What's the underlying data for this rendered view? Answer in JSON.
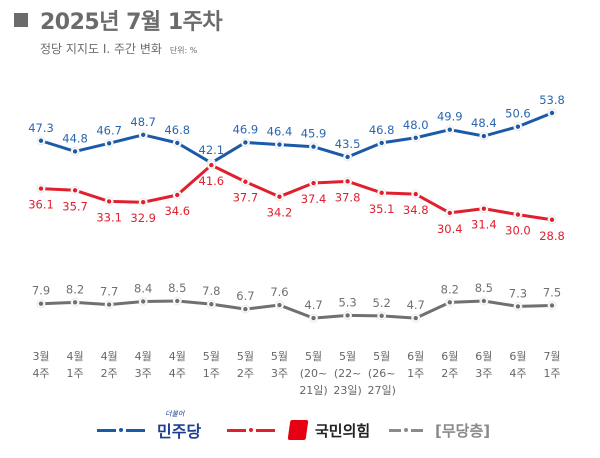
{
  "header": {
    "title": "2025년 7월 1주차",
    "subtitle": "정당 지지도 Ⅰ. 주간 변화",
    "unit": "단위: %"
  },
  "chart_data": {
    "type": "line",
    "title": "2025년 7월 1주차",
    "subtitle": "정당 지지도 Ⅰ. 주간 변화",
    "unit": "%",
    "xlabel": "",
    "ylabel": "",
    "grid": false,
    "legend_position": "bottom",
    "categories": [
      [
        "3월",
        "4주"
      ],
      [
        "4월",
        "1주"
      ],
      [
        "4월",
        "2주"
      ],
      [
        "4월",
        "3주"
      ],
      [
        "4월",
        "4주"
      ],
      [
        "5월",
        "1주"
      ],
      [
        "5월",
        "2주"
      ],
      [
        "5월",
        "3주"
      ],
      [
        "5월",
        "(20~",
        "21일)"
      ],
      [
        "5월",
        "(22~",
        "23일)"
      ],
      [
        "5월",
        "(26~",
        "27일)"
      ],
      [
        "6월",
        "1주"
      ],
      [
        "6월",
        "2주"
      ],
      [
        "6월",
        "3주"
      ],
      [
        "6월",
        "4주"
      ],
      [
        "7월",
        "1주"
      ]
    ],
    "series": [
      {
        "name": "더불어민주당",
        "short": "민주당",
        "color": "#1b5aa8",
        "label_pos": "above",
        "values": [
          47.3,
          44.8,
          46.7,
          48.7,
          46.8,
          42.1,
          46.9,
          46.4,
          45.9,
          43.5,
          46.8,
          48.0,
          49.9,
          48.4,
          50.6,
          53.8
        ]
      },
      {
        "name": "국민의힘",
        "short": "국민의힘",
        "color": "#e0202e",
        "label_pos": "below",
        "values": [
          36.1,
          35.7,
          33.1,
          32.9,
          34.6,
          41.6,
          37.7,
          34.2,
          37.4,
          37.8,
          35.1,
          34.8,
          30.4,
          31.4,
          30.0,
          28.8
        ]
      },
      {
        "name": "[무당층]",
        "short": "[무당층]",
        "color": "#707070",
        "label_pos": "above",
        "values": [
          7.9,
          8.2,
          7.7,
          8.4,
          8.5,
          7.8,
          6.7,
          7.6,
          4.7,
          5.3,
          5.2,
          4.7,
          8.2,
          8.5,
          7.3,
          7.5
        ]
      }
    ]
  },
  "legend": {
    "dem_small": "더불어",
    "dem": "민주당",
    "ppp": "국민의힘",
    "ind": "[무당층]"
  }
}
